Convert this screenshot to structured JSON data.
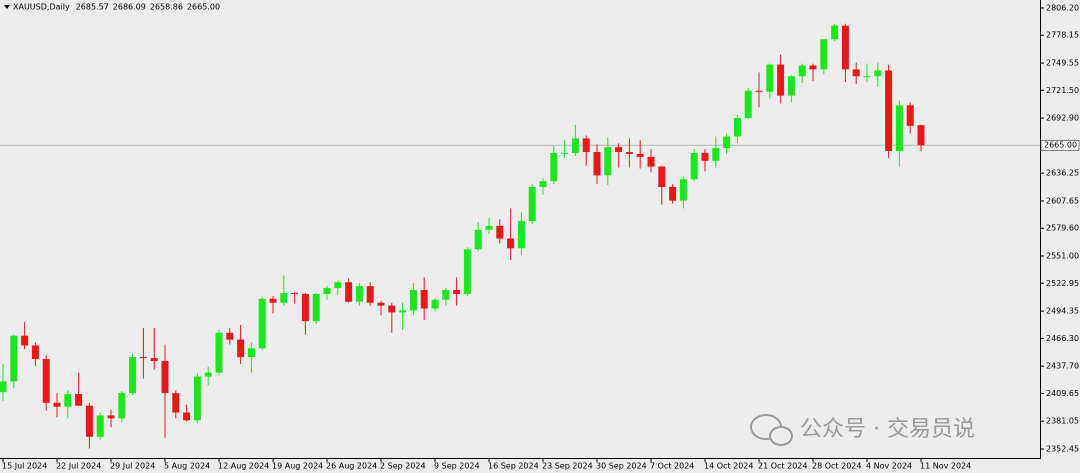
{
  "chart_data": {
    "type": "candlestick",
    "symbol": "XAUUSD,Daily",
    "header_ohlc": [
      "2685.57",
      "2686.09",
      "2658.86",
      "2665.00"
    ],
    "watermark": "公众号 · 交易员说",
    "up_color": "#1ee61e",
    "down_color": "#e61919",
    "categories": [
      "15 Jul 2024",
      null,
      null,
      null,
      null,
      "22 Jul 2024",
      null,
      null,
      null,
      null,
      "29 Jul 2024",
      null,
      null,
      null,
      null,
      "5 Aug 2024",
      null,
      null,
      null,
      null,
      "12 Aug 2024",
      null,
      null,
      null,
      null,
      "19 Aug 2024",
      null,
      null,
      null,
      null,
      "26 Aug 2024",
      null,
      null,
      null,
      null,
      "2 Sep 2024",
      null,
      null,
      null,
      null,
      "9 Sep 2024",
      null,
      null,
      null,
      null,
      "16 Sep 2024",
      null,
      null,
      null,
      null,
      "23 Sep 2024",
      null,
      null,
      null,
      null,
      "30 Sep 2024",
      null,
      null,
      null,
      null,
      "7 Oct 2024",
      null,
      null,
      null,
      null,
      "14 Oct 2024",
      null,
      null,
      null,
      null,
      "21 Oct 2024",
      null,
      null,
      null,
      null,
      "28 Oct 2024",
      null,
      null,
      null,
      null,
      "4 Nov 2024",
      null,
      null,
      null,
      null,
      "11 Nov 2024"
    ],
    "open": [
      2411,
      2422,
      2469,
      2459,
      2445,
      2400,
      2396,
      2409,
      2397,
      2365,
      2387,
      2384,
      2410,
      2447,
      2446,
      2443,
      2410,
      2390,
      2382,
      2427,
      2431,
      2472,
      2465,
      2447,
      2456,
      2507,
      2503,
      2513,
      2512,
      2484,
      2512,
      2518,
      2524,
      2504,
      2520,
      2503,
      2500,
      2493,
      2495,
      2516,
      2497,
      2506,
      2516,
      2512,
      2558,
      2578,
      2582,
      2569,
      2559,
      2587,
      2622,
      2628,
      2657,
      2657,
      2672,
      2658,
      2634,
      2663,
      2658,
      2656,
      2653,
      2643,
      2622,
      2608,
      2630,
      2657,
      2649,
      2662,
      2674,
      2693,
      2721,
      2720,
      2748,
      2716,
      2736,
      2747,
      2743,
      2774,
      2788,
      2743,
      2736,
      2736,
      2742,
      2659,
      2706,
      2685.57
    ],
    "high": [
      2440,
      2470,
      2483,
      2462,
      2449,
      2410,
      2413,
      2431,
      2400,
      2390,
      2393,
      2412,
      2451,
      2477,
      2477,
      2460,
      2413,
      2398,
      2430,
      2437,
      2475,
      2477,
      2480,
      2462,
      2509,
      2510,
      2531,
      2514,
      2513,
      2513,
      2520,
      2526,
      2528,
      2523,
      2524,
      2505,
      2503,
      2503,
      2523,
      2529,
      2508,
      2518,
      2529,
      2560,
      2586,
      2590,
      2589,
      2600,
      2596,
      2625,
      2631,
      2664,
      2670,
      2686,
      2675,
      2666,
      2673,
      2667,
      2672,
      2670,
      2661,
      2644,
      2625,
      2633,
      2661,
      2661,
      2674,
      2677,
      2696,
      2724,
      2740,
      2749,
      2758,
      2737,
      2749,
      2749,
      2774,
      2790,
      2790,
      2750,
      2749,
      2750,
      2748,
      2711,
      2709,
      2686.09
    ],
    "low": [
      2402,
      2415,
      2455,
      2438,
      2392,
      2385,
      2384,
      2397,
      2353,
      2362,
      2375,
      2380,
      2408,
      2425,
      2434,
      2364,
      2384,
      2381,
      2379,
      2418,
      2428,
      2460,
      2440,
      2431,
      2454,
      2492,
      2500,
      2502,
      2470,
      2481,
      2506,
      2511,
      2503,
      2500,
      2500,
      2490,
      2472,
      2475,
      2490,
      2485,
      2494,
      2500,
      2500,
      2510,
      2556,
      2574,
      2564,
      2547,
      2552,
      2584,
      2614,
      2625,
      2652,
      2654,
      2644,
      2625,
      2624,
      2642,
      2642,
      2641,
      2637,
      2604,
      2605,
      2600,
      2628,
      2638,
      2642,
      2656,
      2667,
      2692,
      2704,
      2713,
      2708,
      2709,
      2729,
      2731,
      2738,
      2772,
      2730,
      2728,
      2730,
      2725,
      2652,
      2643,
      2677,
      2658.86
    ],
    "close": [
      2422,
      2469,
      2459,
      2445,
      2400,
      2396,
      2409,
      2397,
      2365,
      2387,
      2384,
      2410,
      2447,
      2446,
      2443,
      2410,
      2390,
      2382,
      2427,
      2431,
      2472,
      2465,
      2447,
      2456,
      2507,
      2503,
      2513,
      2512,
      2484,
      2512,
      2518,
      2524,
      2504,
      2520,
      2503,
      2500,
      2493,
      2495,
      2516,
      2497,
      2506,
      2516,
      2512,
      2558,
      2578,
      2582,
      2569,
      2559,
      2587,
      2622,
      2628,
      2657,
      2657,
      2672,
      2658,
      2634,
      2663,
      2658,
      2656,
      2653,
      2643,
      2622,
      2608,
      2630,
      2657,
      2649,
      2662,
      2674,
      2693,
      2721,
      2720,
      2748,
      2716,
      2736,
      2747,
      2743,
      2774,
      2788,
      2743,
      2736,
      2736,
      2742,
      2659,
      2706,
      2685,
      2665.0
    ],
    "price_line": {
      "value": 2665.0,
      "label": "2665.00"
    },
    "ylim": [
      2343.2,
      2814.4
    ],
    "yticks": [
      {
        "value": 2352.45,
        "label": "2352.45"
      },
      {
        "value": 2381.05,
        "label": "2381.05"
      },
      {
        "value": 2409.65,
        "label": "2409.65"
      },
      {
        "value": 2437.7,
        "label": "2437.70"
      },
      {
        "value": 2466.3,
        "label": "2466.30"
      },
      {
        "value": 2494.35,
        "label": "2494.35"
      },
      {
        "value": 2522.95,
        "label": "2522.95"
      },
      {
        "value": 2551.0,
        "label": "2551.00"
      },
      {
        "value": 2579.6,
        "label": "2579.60"
      },
      {
        "value": 2607.65,
        "label": "2607.65"
      },
      {
        "value": 2636.25,
        "label": "2636.25"
      },
      {
        "value": 2692.9,
        "label": "2692.90"
      },
      {
        "value": 2721.5,
        "label": "2721.50"
      },
      {
        "value": 2749.55,
        "label": "2749.55"
      },
      {
        "value": 2778.15,
        "label": "2778.15"
      },
      {
        "value": 2806.2,
        "label": "2806.20"
      }
    ]
  }
}
